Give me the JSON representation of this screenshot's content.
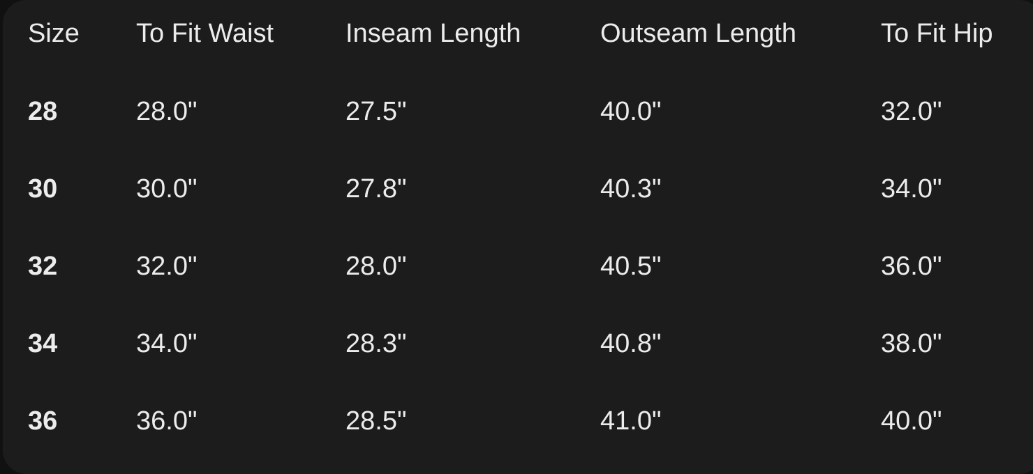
{
  "table": {
    "headers": [
      "Size",
      "To Fit Waist",
      "Inseam Length",
      "Outseam Length",
      "To Fit Hip"
    ],
    "rows": [
      [
        "28",
        "28.0\"",
        "27.5\"",
        "40.0\"",
        "32.0\""
      ],
      [
        "30",
        "30.0\"",
        "27.8\"",
        "40.3\"",
        "34.0\""
      ],
      [
        "32",
        "32.0\"",
        "28.0\"",
        "40.5\"",
        "36.0\""
      ],
      [
        "34",
        "34.0\"",
        "28.3\"",
        "40.8\"",
        "38.0\""
      ],
      [
        "36",
        "36.0\"",
        "28.5\"",
        "41.0\"",
        "40.0\""
      ]
    ]
  }
}
